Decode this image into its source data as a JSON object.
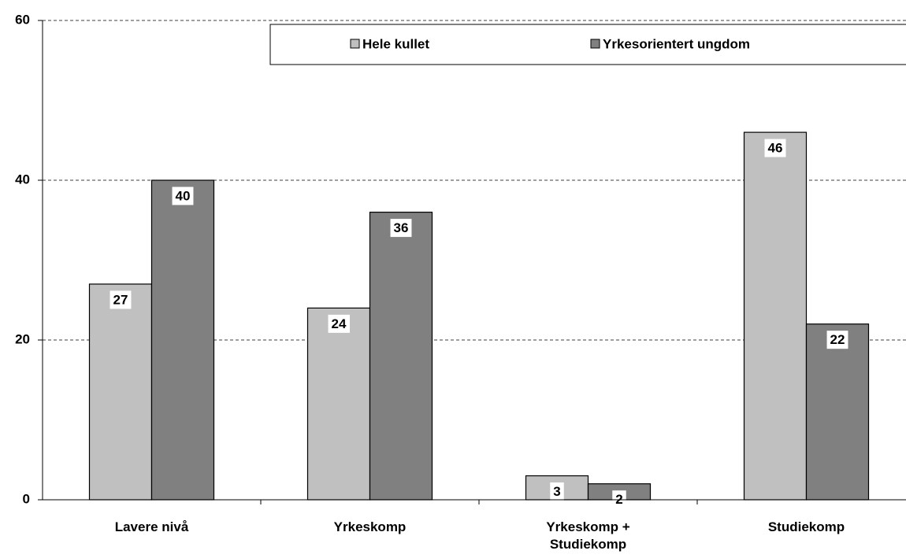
{
  "chart_data": {
    "type": "bar",
    "categories": [
      "Lavere nivå",
      "Yrkeskomp",
      "Yrkeskomp + Studiekomp",
      "Studiekomp"
    ],
    "series": [
      {
        "name": "Hele kullet",
        "color": "#c0c0c0",
        "values": [
          27,
          24,
          3,
          46
        ]
      },
      {
        "name": "Yrkesorientert ungdom",
        "color": "#808080",
        "values": [
          40,
          36,
          2,
          22
        ]
      }
    ],
    "ylim": [
      0,
      60
    ],
    "yticks": [
      0,
      20,
      40,
      60
    ],
    "grid": true,
    "legend": "top"
  }
}
